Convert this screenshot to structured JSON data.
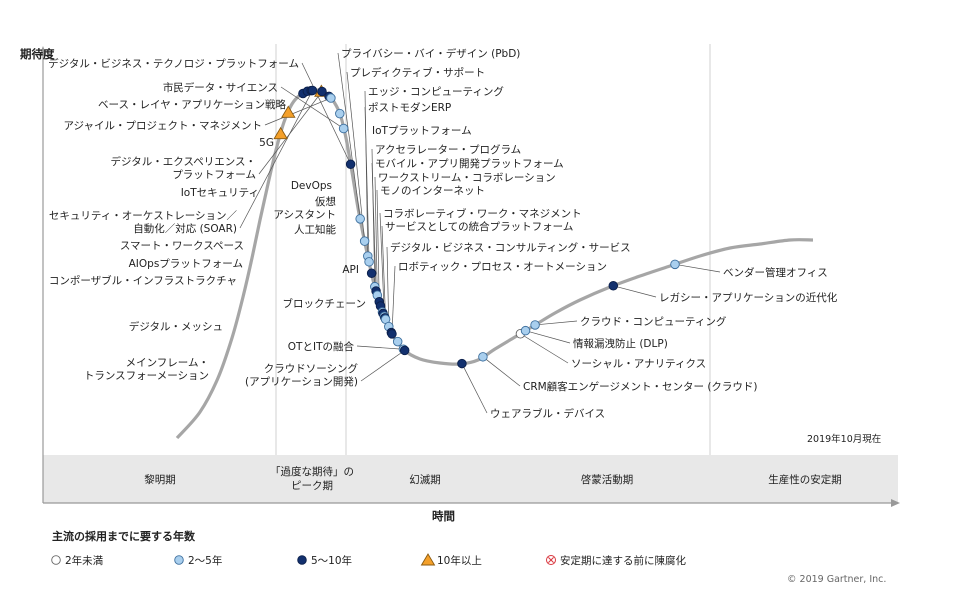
{
  "chart_data": {
    "type": "hype-cycle",
    "y_axis_label": "期待度",
    "x_axis_label": "時間",
    "as_of": "2019年10月現在",
    "copyright": "© 2019 Gartner, Inc.",
    "phases": [
      {
        "id": "trigger",
        "label_lines": [
          "黎明期"
        ]
      },
      {
        "id": "peak",
        "label_lines": [
          "「過度な期待」の",
          "ピーク期"
        ]
      },
      {
        "id": "trough",
        "label_lines": [
          "幻滅期"
        ]
      },
      {
        "id": "slope",
        "label_lines": [
          "啓蒙活動期"
        ]
      },
      {
        "id": "plateau",
        "label_lines": [
          "生産性の安定期"
        ]
      }
    ],
    "legend": {
      "title": "主流の採用までに要する年数",
      "items": [
        {
          "key": "lt2",
          "label": "2年未満"
        },
        {
          "key": "2to5",
          "label": "2～5年"
        },
        {
          "key": "5to10",
          "label": "5～10年"
        },
        {
          "key": "gt10",
          "label": "10年以上"
        },
        {
          "key": "obsolete",
          "label": "安定期に達する前に陳腐化"
        }
      ]
    },
    "technologies": [
      {
        "name": "メインフレーム・トランスフォーメーション",
        "label_lines": [
          "メインフレーム・",
          "トランスフォーメーション"
        ],
        "time": 0.163,
        "years": "gt10"
      },
      {
        "name": "デジタル・メッシュ",
        "label_lines": [
          "デジタル・メッシュ"
        ],
        "time": 0.175,
        "years": "gt10"
      },
      {
        "name": "コンポーザブル・インフラストラクチャ",
        "label_lines": [
          "コンポーザブル・インフラストラクチャ"
        ],
        "time": 0.198,
        "years": "5to10"
      },
      {
        "name": "AIOpsプラットフォーム",
        "label_lines": [
          "AIOpsプラットフォーム"
        ],
        "time": 0.205,
        "years": "5to10"
      },
      {
        "name": "スマート・ワークスペース",
        "label_lines": [
          "スマート・ワークスペース"
        ],
        "time": 0.211,
        "years": "5to10"
      },
      {
        "name": "セキュリティ・オーケストレーション／自動化／対応 (SOAR)",
        "label_lines": [
          "セキュリティ・オーケストレーション／",
          "自動化／対応 (SOAR)"
        ],
        "time": 0.213,
        "years": "5to10"
      },
      {
        "name": "IoTセキュリティ",
        "label_lines": [
          "IoTセキュリティ"
        ],
        "time": 0.227,
        "years": "gt10"
      },
      {
        "name": "デジタル・エクスペリエンス・プラットフォーム",
        "label_lines": [
          "デジタル・エクスペリエンス・",
          "プラットフォーム"
        ],
        "time": 0.228,
        "years": "5to10"
      },
      {
        "name": "5G",
        "label_lines": [
          "5G"
        ],
        "time": 0.239,
        "years": "5to10"
      },
      {
        "name": "アジャイル・プロジェクト・マネジメント",
        "label_lines": [
          "アジャイル・プロジェクト・マネジメント"
        ],
        "time": 0.242,
        "years": "2to5"
      },
      {
        "name": "ベース・レイヤ・アプリケーション戦略",
        "label_lines": [
          "ベース・レイヤ・アプリケーション戦略"
        ],
        "time": 0.256,
        "years": "2to5"
      },
      {
        "name": "市民データ・サイエンス",
        "label_lines": [
          "市民データ・サイエンス"
        ],
        "time": 0.262,
        "years": "2to5"
      },
      {
        "name": "デジタル・ビジネス・テクノロジ・プラットフォーム",
        "label_lines": [
          "デジタル・ビジネス・テクノロジ・プラットフォーム"
        ],
        "time": 0.273,
        "years": "5to10"
      },
      {
        "name": "プライバシー・バイ・デザイン (PbD)",
        "label_lines": [
          "プライバシー・バイ・デザイン (PbD)"
        ],
        "time": 0.288,
        "years": "2to5"
      },
      {
        "name": "プレディクティブ・サポート",
        "label_lines": [
          "プレディクティブ・サポート"
        ],
        "time": 0.295,
        "years": "2to5"
      },
      {
        "name": "エッジ・コンピューティング",
        "label_lines": [
          "エッジ・コンピューティング"
        ],
        "time": 0.3,
        "years": "2to5"
      },
      {
        "name": "ポストモダンERP",
        "label_lines": [
          "ポストモダンERP"
        ],
        "time": 0.302,
        "years": "2to5"
      },
      {
        "name": "IoTプラットフォーム",
        "label_lines": [
          "IoTプラットフォーム"
        ],
        "time": 0.306,
        "years": "5to10"
      },
      {
        "name": "アクセラレーター・プログラム",
        "label_lines": [
          "アクセラレーター・プログラム"
        ],
        "time": 0.311,
        "years": "2to5"
      },
      {
        "name": "モバイル・アプリ開発プラットフォーム",
        "label_lines": [
          "モバイル・アプリ開発プラットフォーム"
        ],
        "time": 0.313,
        "years": "5to10"
      },
      {
        "name": "ワークストリーム・コラボレーション",
        "label_lines": [
          "ワークストリーム・コラボレーション"
        ],
        "time": 0.315,
        "years": "2to5"
      },
      {
        "name": "モノのインターネット",
        "label_lines": [
          "モノのインターネット"
        ],
        "time": 0.318,
        "years": "5to10"
      },
      {
        "name": "DevOps",
        "label_lines": [
          "DevOps"
        ],
        "time": 0.32,
        "years": "5to10"
      },
      {
        "name": "仮想",
        "label_lines": [
          "仮想"
        ],
        "time": 0.323,
        "years": "2to5"
      },
      {
        "name": "アシスタント",
        "label_lines": [
          "アシスタント"
        ],
        "time": 0.324,
        "years": "5to10"
      },
      {
        "name": "コラボレーティブ・ワーク・マネジメント",
        "label_lines": [
          "コラボレーティブ・ワーク・マネジメント"
        ],
        "time": 0.326,
        "years": "2to5"
      },
      {
        "name": "人工知能",
        "label_lines": [
          "人工知能"
        ],
        "time": 0.327,
        "years": "5to10"
      },
      {
        "name": "サービスとしての統合プラットフォーム",
        "label_lines": [
          "サービスとしての統合プラットフォーム"
        ],
        "time": 0.328,
        "years": "2to5"
      },
      {
        "name": "デジタル・ビジネス・コンサルティング・サービス",
        "label_lines": [
          "デジタル・ビジネス・コンサルティング・サービス"
        ],
        "time": 0.333,
        "years": "2to5"
      },
      {
        "name": "API",
        "label_lines": [
          "API"
        ],
        "time": 0.337,
        "years": "5to10"
      },
      {
        "name": "ロボティック・プロセス・オートメーション",
        "label_lines": [
          "ロボティック・プロセス・オートメーション"
        ],
        "time": 0.338,
        "years": "5to10"
      },
      {
        "name": "ブロックチェーン",
        "label_lines": [
          "ブロックチェーン"
        ],
        "time": 0.347,
        "years": "2to5"
      },
      {
        "name": "OTとITの融合",
        "label_lines": [
          "OTとITの融合"
        ],
        "time": 0.356,
        "years": "2to5"
      },
      {
        "name": "クラウドソーシング (アプリケーション開発)",
        "label_lines": [
          "クラウドソーシング",
          "(アプリケーション開発)"
        ],
        "time": 0.358,
        "years": "5to10"
      },
      {
        "name": "ウェアラブル・デバイス",
        "label_lines": [
          "ウェアラブル・デバイス"
        ],
        "time": 0.448,
        "years": "5to10"
      },
      {
        "name": "CRM顧客エンゲージメント・センター (クラウド)",
        "label_lines": [
          "CRM顧客エンゲージメント・センター (クラウド)"
        ],
        "time": 0.481,
        "years": "2to5"
      },
      {
        "name": "ソーシャル・アナリティクス",
        "label_lines": [
          "ソーシャル・アナリティクス"
        ],
        "time": 0.54,
        "years": "lt2"
      },
      {
        "name": "情報漏洩防止 (DLP)",
        "label_lines": [
          "情報漏洩防止 (DLP)"
        ],
        "time": 0.548,
        "years": "2to5"
      },
      {
        "name": "クラウド・コンピューティング",
        "label_lines": [
          "クラウド・コンピューティング"
        ],
        "time": 0.563,
        "years": "2to5"
      },
      {
        "name": "レガシー・アプリケーションの近代化",
        "label_lines": [
          "レガシー・アプリケーションの近代化"
        ],
        "time": 0.686,
        "years": "5to10"
      },
      {
        "name": "ベンダー管理オフィス",
        "label_lines": [
          "ベンダー管理オフィス"
        ],
        "time": 0.783,
        "years": "2to5"
      }
    ]
  }
}
